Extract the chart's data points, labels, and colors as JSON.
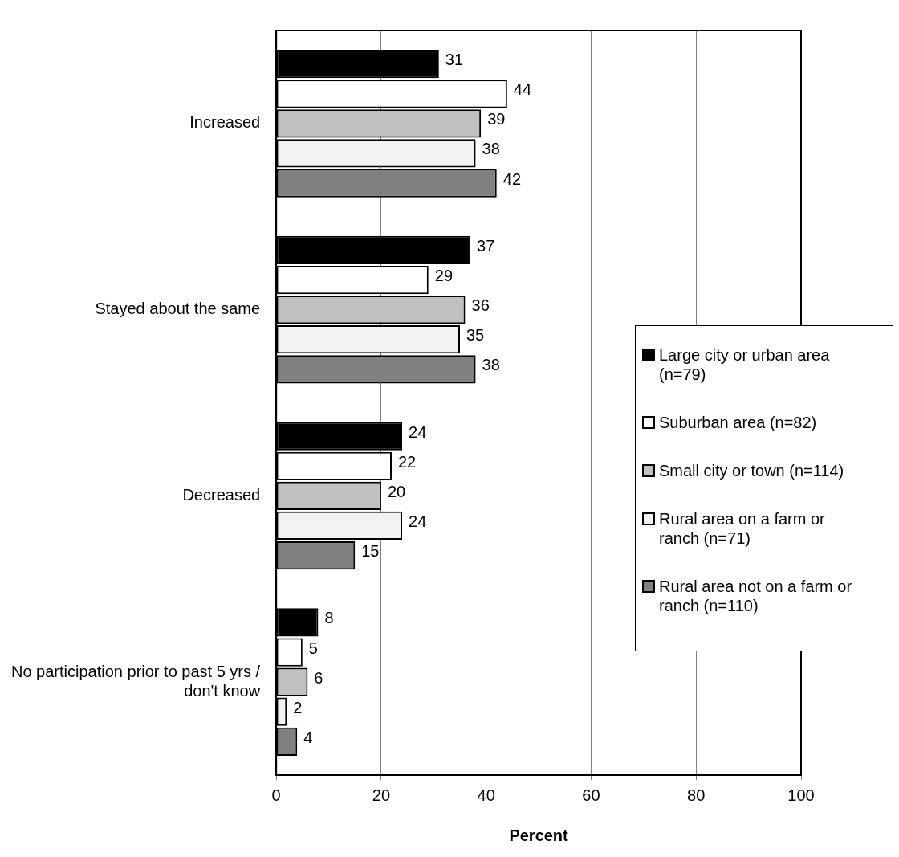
{
  "chart_data": {
    "type": "bar",
    "orientation": "horizontal",
    "xlabel": "Percent",
    "categories": [
      "Increased",
      "Stayed about the same",
      "Decreased",
      "No participation prior to past 5 yrs / don't know"
    ],
    "series": [
      {
        "name": "Large city or urban area (n=79)",
        "color": "#000000",
        "values": [
          31,
          37,
          24,
          8
        ]
      },
      {
        "name": "Suburban area (n=82)",
        "color": "#ffffff",
        "values": [
          44,
          29,
          22,
          5
        ]
      },
      {
        "name": "Small city or town (n=114)",
        "color": "#c0c0c0",
        "values": [
          39,
          36,
          20,
          6
        ]
      },
      {
        "name": "Rural area on a farm or ranch (n=71)",
        "color": "#f2f2f2",
        "values": [
          38,
          35,
          24,
          2
        ]
      },
      {
        "name": "Rural area not on a farm or ranch (n=110)",
        "color": "#808080",
        "values": [
          42,
          38,
          15,
          4
        ]
      }
    ],
    "xlim": [
      0,
      100
    ],
    "xticks": [
      0,
      20,
      40,
      60,
      80,
      100
    ],
    "grid": "x",
    "legend": "right",
    "data_labels": true
  }
}
